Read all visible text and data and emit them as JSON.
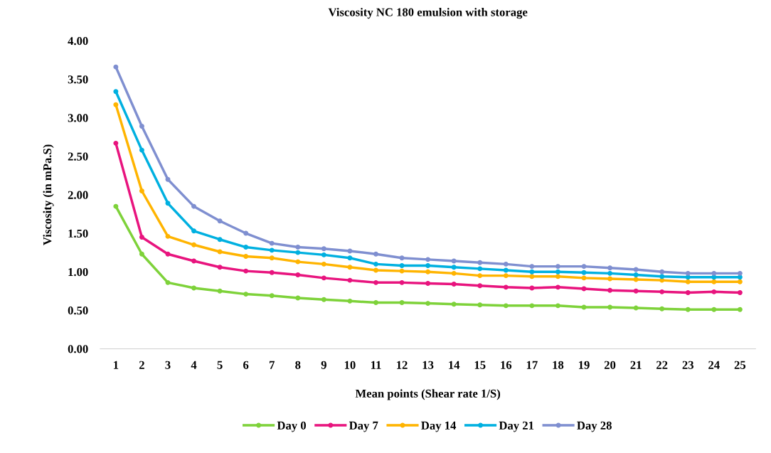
{
  "chart_data": {
    "type": "line",
    "title": "Viscosity NC 180 emulsion with storage",
    "xlabel": "Mean points (Shear rate 1/S)",
    "ylabel": "Viscosity (in mPa.S)",
    "categories": [
      "1",
      "2",
      "3",
      "4",
      "5",
      "6",
      "7",
      "8",
      "9",
      "10",
      "11",
      "12",
      "13",
      "14",
      "15",
      "16",
      "17",
      "18",
      "19",
      "20",
      "21",
      "22",
      "23",
      "24",
      "25"
    ],
    "series": [
      {
        "name": "Day 0",
        "color": "#7ed23a",
        "values": [
          1.85,
          1.23,
          0.86,
          0.79,
          0.75,
          0.71,
          0.69,
          0.66,
          0.64,
          0.62,
          0.6,
          0.6,
          0.59,
          0.58,
          0.57,
          0.56,
          0.56,
          0.56,
          0.54,
          0.54,
          0.53,
          0.52,
          0.51,
          0.51,
          0.51
        ]
      },
      {
        "name": "Day 7",
        "color": "#e8147e",
        "values": [
          2.67,
          1.45,
          1.23,
          1.14,
          1.06,
          1.01,
          0.99,
          0.96,
          0.92,
          0.89,
          0.86,
          0.86,
          0.85,
          0.84,
          0.82,
          0.8,
          0.79,
          0.8,
          0.78,
          0.76,
          0.75,
          0.74,
          0.73,
          0.74,
          0.73
        ]
      },
      {
        "name": "Day 14",
        "color": "#ffb400",
        "values": [
          3.17,
          2.05,
          1.46,
          1.35,
          1.26,
          1.2,
          1.18,
          1.13,
          1.1,
          1.06,
          1.02,
          1.01,
          1.0,
          0.98,
          0.95,
          0.95,
          0.94,
          0.94,
          0.92,
          0.91,
          0.9,
          0.89,
          0.87,
          0.87,
          0.87
        ]
      },
      {
        "name": "Day 21",
        "color": "#00b0e0",
        "values": [
          3.34,
          2.58,
          1.89,
          1.53,
          1.42,
          1.32,
          1.28,
          1.25,
          1.22,
          1.18,
          1.1,
          1.08,
          1.08,
          1.06,
          1.04,
          1.02,
          1.0,
          1.0,
          0.99,
          0.98,
          0.96,
          0.94,
          0.93,
          0.93,
          0.93
        ]
      },
      {
        "name": "Day 28",
        "color": "#7f8fd0",
        "values": [
          3.66,
          2.89,
          2.2,
          1.85,
          1.66,
          1.5,
          1.37,
          1.32,
          1.3,
          1.27,
          1.23,
          1.18,
          1.16,
          1.14,
          1.12,
          1.1,
          1.07,
          1.07,
          1.07,
          1.05,
          1.03,
          1.0,
          0.98,
          0.98,
          0.98
        ]
      }
    ],
    "ylim": [
      0,
      4
    ],
    "yticks": [
      {
        "value": 0,
        "label": "0.00"
      },
      {
        "value": 0.5,
        "label": "0.50"
      },
      {
        "value": 1,
        "label": "1.00"
      },
      {
        "value": 1.5,
        "label": "1.50"
      },
      {
        "value": 2,
        "label": "2.00"
      },
      {
        "value": 2.5,
        "label": "2.50"
      },
      {
        "value": 3,
        "label": "3.00"
      },
      {
        "value": 3.5,
        "label": "3.50"
      },
      {
        "value": 4,
        "label": "4.00"
      }
    ],
    "grid": false,
    "legend": "bottom",
    "marker": "circle",
    "line_style": "solid"
  }
}
